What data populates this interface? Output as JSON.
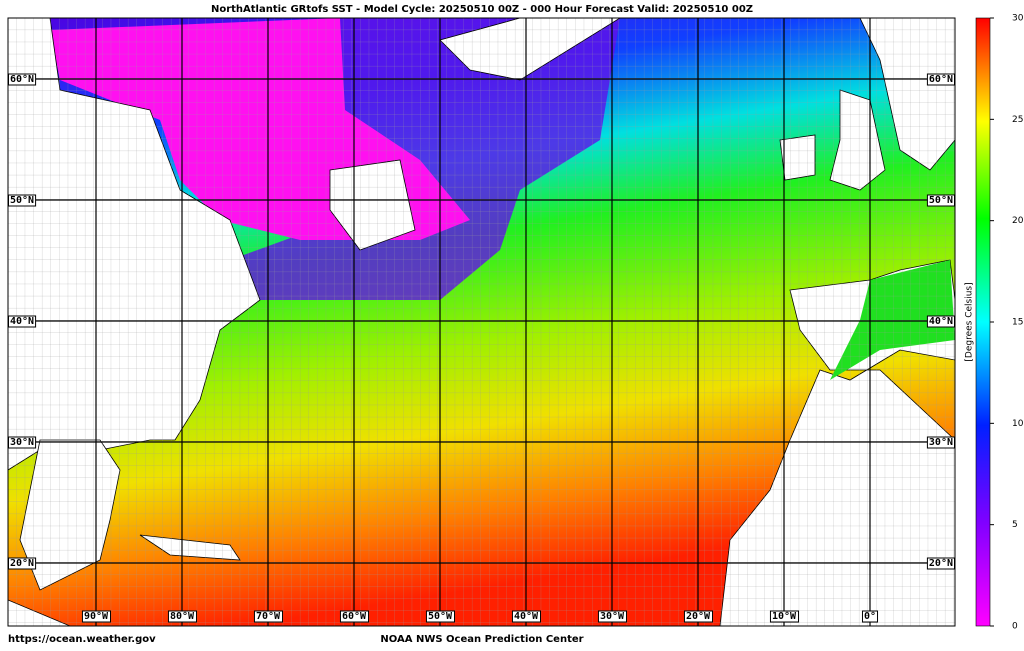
{
  "title": "NorthAtlantic GRtofs SST - Model Cycle: 20250510 00Z - 000 Hour Forecast Valid: 20250510 00Z",
  "map": {
    "lat_labels": [
      "60°N",
      "50°N",
      "40°N",
      "30°N",
      "20°N"
    ],
    "lon_labels": [
      "90°W",
      "80°W",
      "70°W",
      "60°W",
      "50°W",
      "40°W",
      "30°W",
      "20°W",
      "10°W",
      "0°"
    ]
  },
  "colorbar": {
    "label": "[Degrees Celsius]",
    "lim": [
      0,
      30
    ],
    "ticks": [
      0,
      5,
      10,
      15,
      20,
      25,
      30
    ]
  },
  "footer": {
    "left": "https://ocean.weather.gov",
    "center": "NOAA NWS Ocean Prediction Center"
  }
}
